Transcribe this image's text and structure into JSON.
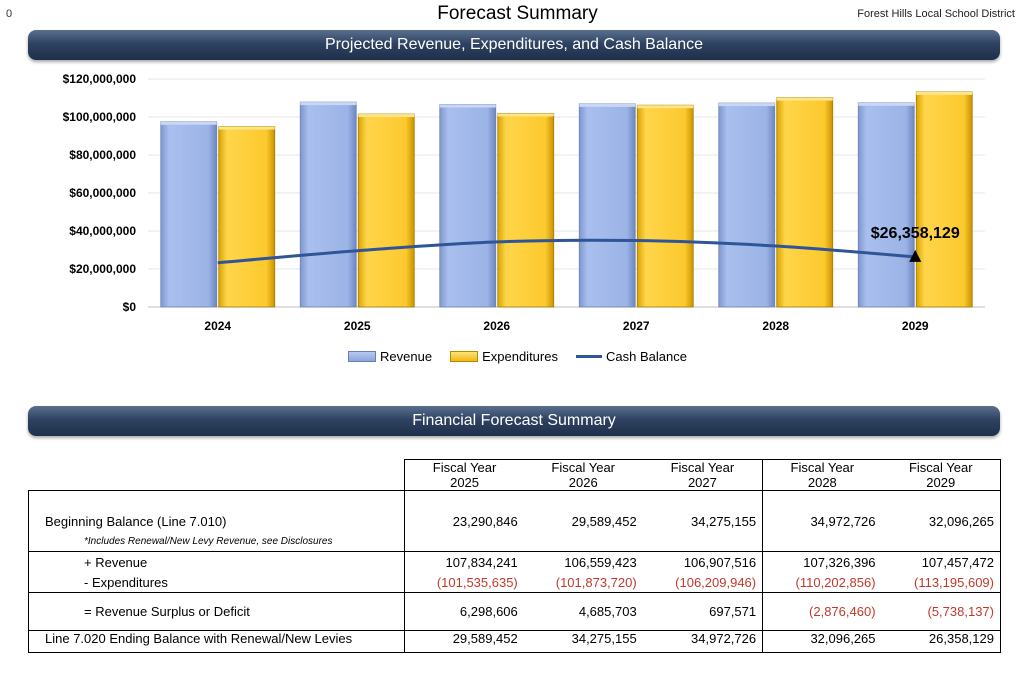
{
  "page": {
    "corner_number": "0",
    "title": "Forecast Summary",
    "district": "Forest Hills Local School District"
  },
  "chart_banner": "Projected Revenue, Expenditures, and Cash Balance",
  "table_banner": "Financial Forecast Summary",
  "colors": {
    "revenue": "#9bb3e6",
    "expenditures": "#fcc92e",
    "cash_balance": "#2f5597",
    "banner": "#2f4262",
    "negative": "#c0392b"
  },
  "chart_data": {
    "type": "bar",
    "categories": [
      "2024",
      "2025",
      "2026",
      "2027",
      "2028",
      "2029"
    ],
    "series": [
      {
        "name": "Revenue",
        "type": "bar",
        "values": [
          97500000,
          107834241,
          106559423,
          106907516,
          107326396,
          107457472
        ]
      },
      {
        "name": "Expenditures",
        "type": "bar",
        "values": [
          95000000,
          101535635,
          101873720,
          106209946,
          110202856,
          113195609
        ]
      },
      {
        "name": "Cash Balance",
        "type": "line",
        "values": [
          23290846,
          29589452,
          34275155,
          34972726,
          32096265,
          26358129
        ]
      }
    ],
    "y_ticks": [
      "$0",
      "$20,000,000",
      "$40,000,000",
      "$60,000,000",
      "$80,000,000",
      "$100,000,000",
      "$120,000,000"
    ],
    "ylim": [
      0,
      120000000
    ],
    "annotation": {
      "text": "$26,358,129",
      "category": "2029",
      "value": 26358129
    },
    "legend": [
      "Revenue",
      "Expenditures",
      "Cash Balance"
    ],
    "legend_position": "bottom",
    "grid": true
  },
  "table": {
    "headers": [
      {
        "line1": "Fiscal Year",
        "line2": "2025"
      },
      {
        "line1": "Fiscal Year",
        "line2": "2026"
      },
      {
        "line1": "Fiscal Year",
        "line2": "2027"
      },
      {
        "line1": "Fiscal Year",
        "line2": "2028"
      },
      {
        "line1": "Fiscal Year",
        "line2": "2029"
      }
    ],
    "beginning_label": "Beginning Balance (Line 7.010)",
    "beginning_values": [
      "23,290,846",
      "29,589,452",
      "34,275,155",
      "34,972,726",
      "32,096,265"
    ],
    "note": "*Includes Renewal/New Levy Revenue, see Disclosures",
    "revenue_label": "+ Revenue",
    "revenue_values": [
      "107,834,241",
      "106,559,423",
      "106,907,516",
      "107,326,396",
      "107,457,472"
    ],
    "expenditures_label": "- Expenditures",
    "expenditures_values": [
      "(101,535,635)",
      "(101,873,720)",
      "(106,209,946)",
      "(110,202,856)",
      "(113,195,609)"
    ],
    "surplus_label": "= Revenue Surplus or Deficit",
    "surplus_values": [
      "6,298,606",
      "4,685,703",
      "697,571",
      "(2,876,460)",
      "(5,738,137)"
    ],
    "ending_label": "Line 7.020 Ending Balance with Renewal/New Levies",
    "ending_values": [
      "29,589,452",
      "34,275,155",
      "34,972,726",
      "32,096,265",
      "26,358,129"
    ]
  }
}
